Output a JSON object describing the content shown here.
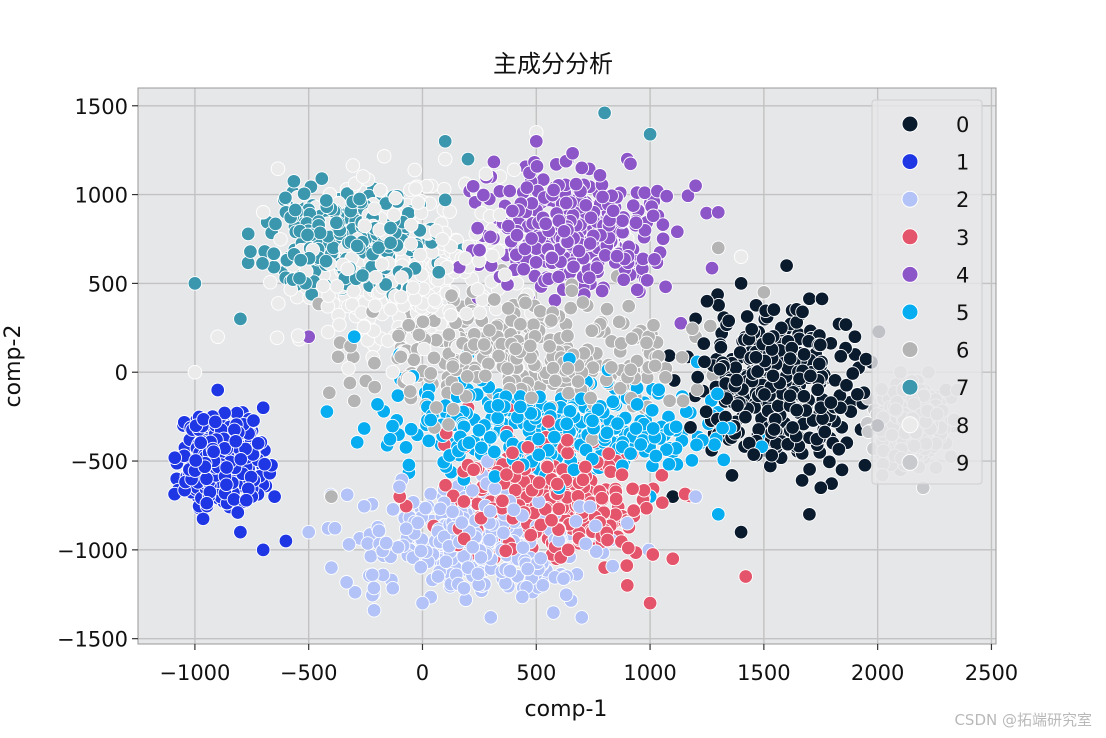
{
  "chart_data": {
    "type": "scatter",
    "title": "主成分分析",
    "xlabel": "comp-1",
    "ylabel": "comp-2",
    "xlim": [
      -1250,
      2520
    ],
    "ylim": [
      -1530,
      1600
    ],
    "xticks": [
      -1000,
      -500,
      0,
      500,
      1000,
      1500,
      2000,
      2500
    ],
    "yticks": [
      -1500,
      -1000,
      -500,
      0,
      500,
      1000,
      1500
    ],
    "xtick_labels": [
      "−1000",
      "−500",
      "0",
      "500",
      "1000",
      "1500",
      "2000",
      "2500"
    ],
    "ytick_labels": [
      "−1500",
      "−1000",
      "−500",
      "0",
      "500",
      "1000",
      "1500"
    ],
    "grid": true,
    "legend_position": "top-right",
    "series": [
      {
        "name": "0",
        "color": "#0b1b2e",
        "center": [
          1560,
          -100
        ],
        "spread": [
          260,
          300
        ],
        "points": [
          [
            1600,
            600
          ],
          [
            1400,
            500
          ],
          [
            1200,
            300
          ],
          [
            1700,
            -800
          ],
          [
            1400,
            -900
          ],
          [
            2000,
            -300
          ],
          [
            1900,
            200
          ],
          [
            1100,
            -700
          ],
          [
            1750,
            -650
          ],
          [
            1250,
            400
          ]
        ]
      },
      {
        "name": "1",
        "color": "#1f36e5",
        "center": [
          -880,
          -500
        ],
        "spread": [
          120,
          200
        ],
        "points": [
          [
            -1050,
            -300
          ],
          [
            -700,
            -1000
          ],
          [
            -600,
            -950
          ],
          [
            -800,
            -900
          ],
          [
            -1080,
            -600
          ],
          [
            -700,
            -200
          ],
          [
            -900,
            -100
          ],
          [
            -650,
            -700
          ]
        ]
      },
      {
        "name": "2",
        "color": "#b3c3f8",
        "center": [
          250,
          -950
        ],
        "spread": [
          380,
          220
        ],
        "points": [
          [
            700,
            -1380
          ],
          [
            300,
            -1380
          ],
          [
            0,
            -1300
          ],
          [
            -400,
            -1100
          ],
          [
            -500,
            -900
          ],
          [
            900,
            -850
          ],
          [
            1200,
            -700
          ],
          [
            200,
            -1100
          ]
        ]
      },
      {
        "name": "3",
        "color": "#e4546a",
        "center": [
          550,
          -700
        ],
        "spread": [
          330,
          260
        ],
        "points": [
          [
            1000,
            -1300
          ],
          [
            1420,
            -1150
          ],
          [
            1100,
            -1050
          ],
          [
            200,
            -200
          ],
          [
            600,
            -350
          ],
          [
            900,
            -1200
          ],
          [
            -100,
            -700
          ],
          [
            800,
            -1100
          ]
        ]
      },
      {
        "name": "4",
        "color": "#8d56c8",
        "center": [
          650,
          800
        ],
        "spread": [
          300,
          250
        ],
        "points": [
          [
            900,
            1200
          ],
          [
            500,
            1300
          ],
          [
            1300,
            900
          ],
          [
            1200,
            1050
          ],
          [
            -500,
            200
          ],
          [
            300,
            1100
          ],
          [
            1000,
            950
          ],
          [
            700,
            1150
          ]
        ]
      },
      {
        "name": "5",
        "color": "#06adf0",
        "center": [
          600,
          -300
        ],
        "spread": [
          550,
          200
        ],
        "points": [
          [
            -300,
            200
          ],
          [
            1300,
            -800
          ],
          [
            1000,
            -700
          ],
          [
            200,
            100
          ],
          [
            -100,
            100
          ],
          [
            1100,
            -450
          ],
          [
            600,
            -650
          ],
          [
            800,
            -250
          ]
        ]
      },
      {
        "name": "6",
        "color": "#b4b4b4",
        "center": [
          450,
          100
        ],
        "spread": [
          500,
          250
        ],
        "points": [
          [
            2300,
            -100
          ],
          [
            2200,
            -350
          ],
          [
            2100,
            -550
          ],
          [
            1300,
            700
          ],
          [
            900,
            600
          ],
          [
            1200,
            200
          ],
          [
            -400,
            -700
          ],
          [
            1500,
            450
          ]
        ]
      },
      {
        "name": "7",
        "color": "#3b97ae",
        "center": [
          -300,
          750
        ],
        "spread": [
          250,
          200
        ],
        "points": [
          [
            800,
            1460
          ],
          [
            1000,
            1340
          ],
          [
            100,
            1300
          ],
          [
            -900,
            -100
          ],
          [
            -600,
            900
          ],
          [
            -1000,
            500
          ],
          [
            -800,
            300
          ],
          [
            200,
            1200
          ]
        ]
      },
      {
        "name": "8",
        "color": "#ebebeb",
        "center": [
          -100,
          600
        ],
        "spread": [
          350,
          350
        ],
        "points": [
          [
            500,
            1350
          ],
          [
            1400,
            650
          ],
          [
            -900,
            200
          ],
          [
            -700,
            900
          ],
          [
            -300,
            1050
          ],
          [
            100,
            1200
          ],
          [
            900,
            750
          ],
          [
            -1000,
            0
          ]
        ]
      },
      {
        "name": "9",
        "color": "#c7c9cc",
        "center": [
          2150,
          -280
        ],
        "spread": [
          110,
          160
        ],
        "points": [
          [
            2350,
            -100
          ],
          [
            2020,
            -580
          ],
          [
            2200,
            -650
          ],
          [
            2300,
            -400
          ],
          [
            2100,
            0
          ],
          [
            2250,
            -200
          ],
          [
            2050,
            -150
          ],
          [
            2150,
            -500
          ]
        ]
      }
    ]
  },
  "watermark": "CSDN @拓端研究室"
}
